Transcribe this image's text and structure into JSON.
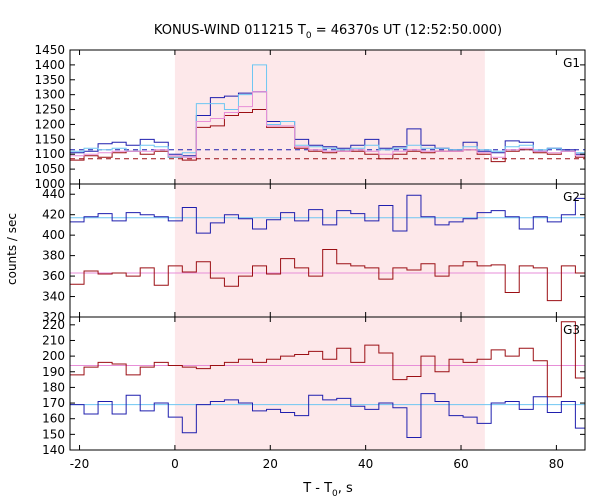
{
  "chart_data": {
    "type": "line",
    "title": "KONUS-WIND 011215 T",
    "title_sub": "0",
    "title_tail": " = 46370s UT (12:52:50.000)",
    "xlabel": "T - T",
    "xlabel_sub": "0",
    "xlabel_tail": ", s",
    "ylabel": "counts / sec",
    "xlim": [
      -22,
      86
    ],
    "x_ticks": [
      -20,
      0,
      20,
      40,
      60,
      80
    ],
    "colors": {
      "shade": "#fde8ea",
      "blue": "#1f1fae",
      "red": "#9b0f14",
      "light_blue": "#6ec6f2",
      "pink": "#e78ed8"
    },
    "highlight_interval": [
      0,
      65
    ],
    "bin_width": 2.944,
    "panels": [
      {
        "name": "G1",
        "ylim": [
          1000,
          1450
        ],
        "y_ticks": [
          1000,
          1050,
          1100,
          1150,
          1200,
          1250,
          1300,
          1350,
          1400,
          1450
        ],
        "background_levels": {
          "blue": 1115,
          "red": 1085
        },
        "series": [
          {
            "color_key": "blue",
            "values": [
              1105,
              1110,
              1135,
              1140,
              1130,
              1150,
              1140,
              1100,
              1095,
              1230,
              1290,
              1295,
              1305,
              1310,
              1210,
              1210,
              1150,
              1130,
              1125,
              1120,
              1130,
              1150,
              1120,
              1125,
              1185,
              1130,
              1120,
              1115,
              1140,
              1110,
              1105,
              1145,
              1140,
              1110,
              1120,
              1115,
              1100,
              1100
            ]
          },
          {
            "color_key": "red",
            "values": [
              1080,
              1095,
              1090,
              1105,
              1110,
              1100,
              1110,
              1090,
              1080,
              1190,
              1195,
              1230,
              1240,
              1250,
              1190,
              1190,
              1120,
              1110,
              1105,
              1110,
              1110,
              1100,
              1085,
              1100,
              1110,
              1105,
              1110,
              1110,
              1115,
              1100,
              1075,
              1110,
              1115,
              1105,
              1100,
              1110,
              1090,
              1100
            ]
          },
          {
            "color_key": "light_blue",
            "values": [
              1110,
              1120,
              1115,
              1120,
              1110,
              1130,
              1125,
              1090,
              1105,
              1270,
              1270,
              1250,
              1300,
              1400,
              1200,
              1210,
              1130,
              1125,
              1120,
              1115,
              1120,
              1130,
              1115,
              1120,
              1130,
              1120,
              1120,
              1115,
              1125,
              1115,
              1110,
              1125,
              1130,
              1115,
              1120,
              1110,
              1105,
              1105
            ]
          },
          {
            "color_key": "pink",
            "values": [
              1095,
              1100,
              1105,
              1110,
              1110,
              1110,
              1115,
              1095,
              1090,
              1210,
              1220,
              1240,
              1260,
              1310,
              1195,
              1195,
              1125,
              1115,
              1110,
              1110,
              1115,
              1110,
              1100,
              1110,
              1115,
              1110,
              1110,
              1110,
              1115,
              1105,
              1090,
              1115,
              1120,
              1110,
              1105,
              1110,
              1095,
              1100
            ]
          }
        ]
      },
      {
        "name": "G2",
        "ylim": [
          320,
          450
        ],
        "y_ticks": [
          320,
          340,
          360,
          380,
          400,
          420,
          440
        ],
        "background_levels": {
          "light_blue": 417,
          "pink": 363
        },
        "series": [
          {
            "color_key": "blue",
            "values": [
              413,
              418,
              421,
              414,
              422,
              420,
              418,
              414,
              427,
              402,
              412,
              420,
              416,
              406,
              415,
              422,
              414,
              425,
              410,
              424,
              421,
              414,
              429,
              404,
              439,
              418,
              410,
              413,
              416,
              422,
              424,
              418,
              406,
              418,
              413,
              420,
              436,
              426
            ]
          },
          {
            "color_key": "red",
            "values": [
              352,
              365,
              362,
              363,
              360,
              368,
              351,
              370,
              364,
              374,
              358,
              350,
              360,
              370,
              362,
              377,
              368,
              360,
              386,
              372,
              370,
              368,
              357,
              368,
              366,
              372,
              360,
              370,
              374,
              370,
              371,
              344,
              370,
              368,
              336,
              370,
              363,
              362
            ]
          }
        ]
      },
      {
        "name": "G3",
        "ylim": [
          140,
          225
        ],
        "y_ticks": [
          140,
          150,
          160,
          170,
          180,
          190,
          200,
          210,
          220
        ],
        "background_levels": {
          "light_blue": 169,
          "pink": 194
        },
        "series": [
          {
            "color_key": "blue",
            "values": [
              169,
              163,
              171,
              163,
              175,
              165,
              170,
              161,
              151,
              169,
              171,
              172,
              170,
              165,
              166,
              164,
              162,
              175,
              172,
              173,
              168,
              166,
              170,
              167,
              148,
              176,
              171,
              162,
              161,
              157,
              170,
              171,
              166,
              174,
              164,
              171,
              154,
              177
            ]
          },
          {
            "color_key": "red",
            "values": [
              188,
              193,
              196,
              195,
              188,
              193,
              196,
              194,
              193,
              192,
              194,
              196,
              198,
              196,
              198,
              200,
              201,
              203,
              198,
              205,
              196,
              207,
              202,
              185,
              187,
              200,
              190,
              198,
              196,
              198,
              204,
              200,
              205,
              197,
              174,
              222,
              186,
              213
            ]
          }
        ]
      }
    ]
  }
}
